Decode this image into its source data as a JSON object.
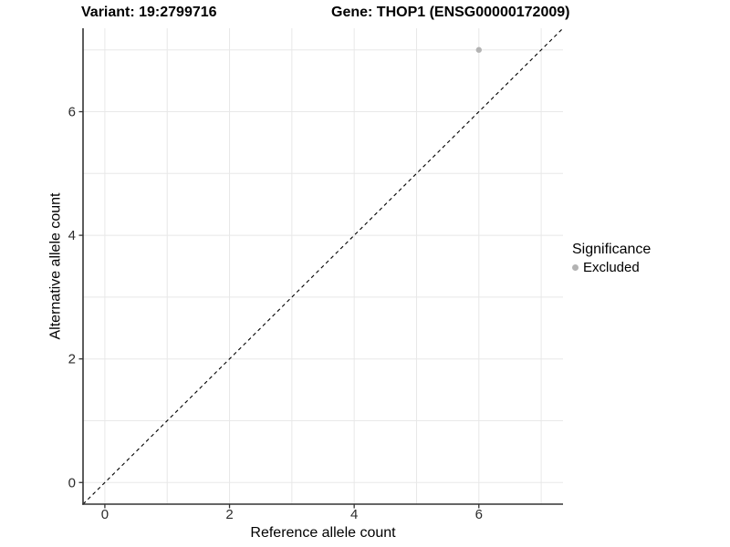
{
  "figure": {
    "background": "#ffffff",
    "title_left": "Variant: 19:2799716",
    "title_right": "Gene: THOP1 (ENSG00000172009)"
  },
  "chart_data": {
    "type": "scatter",
    "xlabel": "Reference allele count",
    "ylabel": "Alternative allele count",
    "xlim": [
      -0.35,
      7.35
    ],
    "ylim": [
      -0.35,
      7.35
    ],
    "x_ticks": [
      0,
      2,
      4,
      6
    ],
    "y_ticks": [
      0,
      2,
      4,
      6
    ],
    "grid_values": [
      0,
      1,
      2,
      3,
      4,
      5,
      6,
      7
    ],
    "grid": true,
    "points": [
      {
        "x": 6,
        "y": 7,
        "series": "Excluded"
      }
    ],
    "identity_line": {
      "type": "abline",
      "slope": 1,
      "intercept": 0,
      "style": "dashed",
      "color": "#000000"
    },
    "legend": {
      "title": "Significance",
      "position": "right",
      "items": [
        {
          "label": "Excluded",
          "color": "#b3b3b3"
        }
      ]
    },
    "colors": {
      "point": "#b3b3b3",
      "grid": "#e8e8e8",
      "axis": "#333333",
      "tick_text": "#2b2b2b"
    }
  }
}
